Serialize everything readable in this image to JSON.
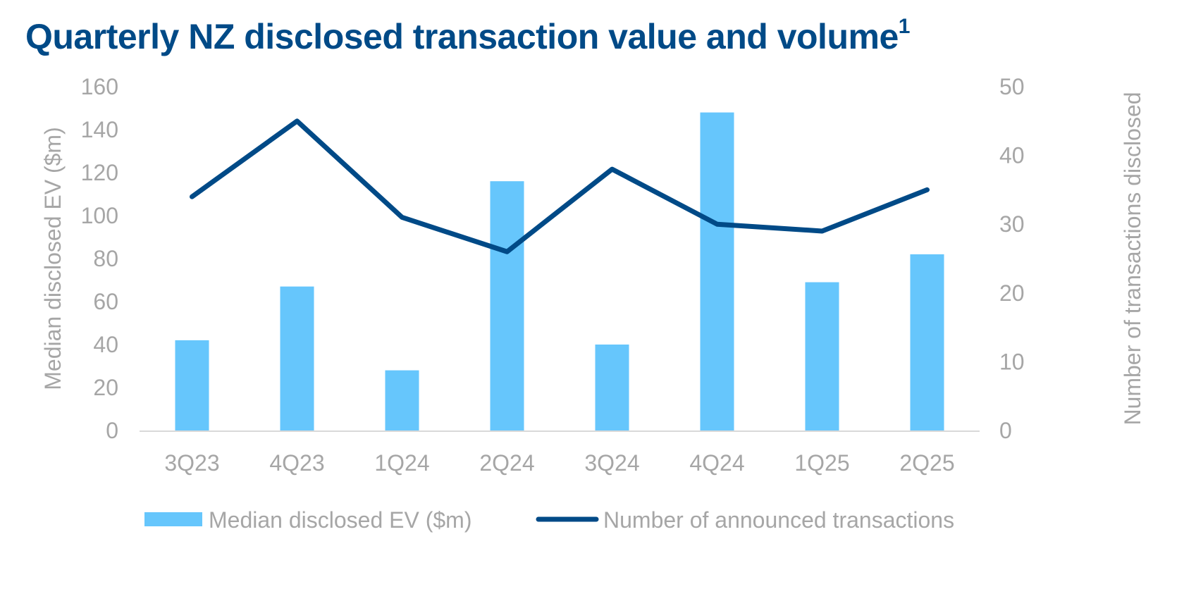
{
  "title": "Quarterly NZ disclosed transaction value and volume",
  "title_superscript": "1",
  "colors": {
    "title": "#004A87",
    "bar": "#66C6FC",
    "line": "#004A87",
    "axis_text": "#A6A6A6",
    "axis_line": "#D9D9D9"
  },
  "chart_data": {
    "type": "bar",
    "categories": [
      "3Q23",
      "4Q23",
      "1Q24",
      "2Q24",
      "3Q24",
      "4Q24",
      "1Q25",
      "2Q25"
    ],
    "series": [
      {
        "name": "Median disclosed EV ($m)",
        "type": "bar",
        "axis": "left",
        "values": [
          42,
          67,
          28,
          116,
          40,
          148,
          69,
          82
        ]
      },
      {
        "name": "Number of announced transactions",
        "type": "line",
        "axis": "right",
        "values": [
          34,
          45,
          31,
          26,
          38,
          30,
          29,
          35
        ]
      }
    ],
    "ylabel": "Median disclosed EV ($m)",
    "y2label": "Number of transactions disclosed",
    "ylim": [
      0,
      160
    ],
    "y2lim": [
      0,
      50
    ],
    "yticks": [
      0,
      20,
      40,
      60,
      80,
      100,
      120,
      140,
      160
    ],
    "y2ticks": [
      0,
      10,
      20,
      30,
      40,
      50
    ],
    "grid": false,
    "legend_position": "bottom"
  }
}
